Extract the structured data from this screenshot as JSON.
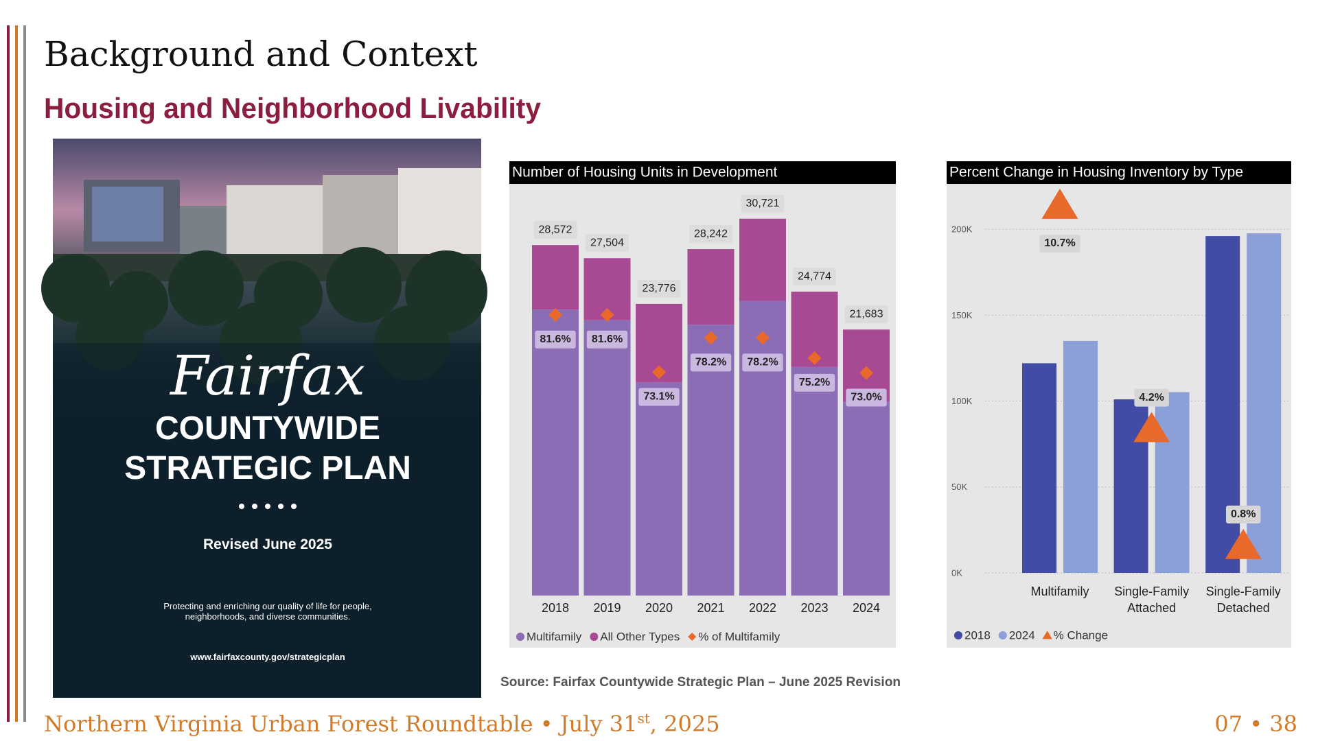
{
  "header": {
    "title": "Background and Context",
    "subtitle": "Housing and Neighborhood Livability"
  },
  "poster": {
    "script_title": "Fairfax",
    "title_lines": [
      "COUNTYWIDE",
      "STRATEGIC PLAN"
    ],
    "revision": "Revised June 2025",
    "tagline_lines": [
      "Protecting and enriching our quality of life for people,",
      "neighborhoods, and diverse communities."
    ],
    "url": "www.fairfaxcounty.gov/strategicplan"
  },
  "chart_data": [
    {
      "type": "bar",
      "stacked": true,
      "title": "Number of Housing Units in Development",
      "categories": [
        "2018",
        "2019",
        "2020",
        "2021",
        "2022",
        "2023",
        "2024"
      ],
      "series": [
        {
          "name": "Multifamily",
          "color": "#8a6db5",
          "values": [
            23315,
            22443,
            17380,
            22085,
            24024,
            18630,
            15829
          ]
        },
        {
          "name": "All Other Types",
          "color": "#a84a93",
          "values": [
            5257,
            5061,
            6396,
            6157,
            6697,
            6144,
            5854
          ]
        },
        {
          "name": "% of Multifamily",
          "color": "#e8692a",
          "marker": "diamond",
          "axis": "y2",
          "values": [
            81.6,
            81.6,
            73.1,
            78.2,
            78.2,
            75.2,
            73.0
          ],
          "value_labels": [
            "81.6%",
            "81.6%",
            "73.1%",
            "78.2%",
            "78.2%",
            "75.2%",
            "73.0%"
          ]
        }
      ],
      "totals": [
        28572,
        27504,
        23776,
        28242,
        30721,
        24774,
        21683
      ],
      "total_labels": [
        "28,572",
        "27,504",
        "23,776",
        "28,242",
        "30,721",
        "24,774",
        "21,683"
      ],
      "ylim": [
        0,
        33000
      ],
      "y2lim": [
        40,
        100
      ],
      "grid": false
    },
    {
      "type": "bar",
      "stacked": false,
      "title": "Percent Change in Housing Inventory by Type",
      "categories": [
        "Multifamily",
        "Single-Family Attached",
        "Single-Family Detached"
      ],
      "series": [
        {
          "name": "2018",
          "color": "#434ca5",
          "values": [
            122000,
            101000,
            196000
          ]
        },
        {
          "name": "2024",
          "color": "#8b9fd8",
          "values": [
            135000,
            105200,
            197600
          ]
        },
        {
          "name": "% Change",
          "color": "#e8692a",
          "marker": "triangle",
          "axis": "y2",
          "values": [
            10.7,
            4.2,
            0.8
          ],
          "value_labels": [
            "10.7%",
            "4.2%",
            "0.8%"
          ]
        }
      ],
      "ylim": [
        0,
        220000
      ],
      "yticks": [
        {
          "value": 0,
          "label": "0K"
        },
        {
          "value": 50000,
          "label": "50K"
        },
        {
          "value": 100000,
          "label": "100K"
        },
        {
          "value": 150000,
          "label": "150K"
        },
        {
          "value": 200000,
          "label": "200K"
        }
      ],
      "y2lim": [
        0,
        11
      ],
      "grid": true
    }
  ],
  "source": "Source: Fairfax Countywide Strategic Plan – June 2025 Revision",
  "footer": {
    "event": "Northern Virginia Urban Forest Roundtable • July 31",
    "date_suffix": "st",
    "year": ", 2025",
    "page": "07 • 38"
  }
}
